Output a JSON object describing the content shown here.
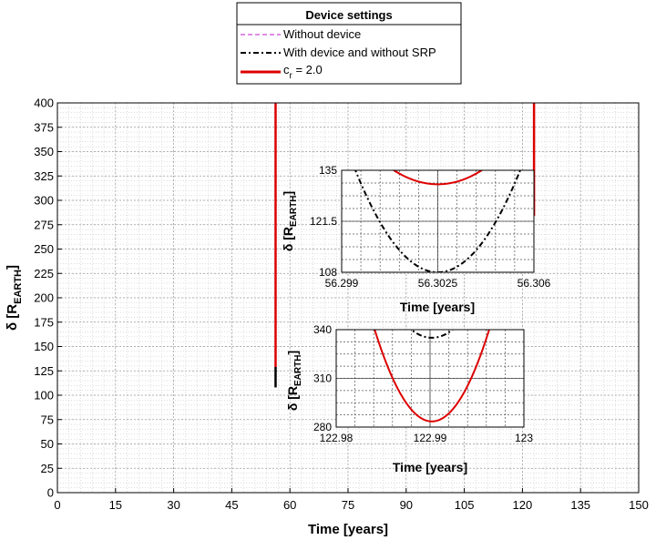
{
  "chart_data": [
    {
      "type": "line",
      "id": "main",
      "title": "",
      "xlabel": "Time [years]",
      "ylabel": "δ [R_EARTH]",
      "ylabel_main": "δ [R",
      "ylabel_sub": "EARTH",
      "ylabel_close": "]",
      "xlim": [
        0,
        150
      ],
      "ylim": [
        0,
        400
      ],
      "xticks": [
        0,
        15,
        30,
        45,
        60,
        75,
        90,
        105,
        120,
        135,
        150
      ],
      "yticks": [
        0,
        25,
        50,
        75,
        100,
        125,
        150,
        175,
        200,
        225,
        250,
        275,
        300,
        325,
        350,
        375,
        400
      ],
      "grid": true,
      "minor_grid": true,
      "legend": {
        "title": "Device settings",
        "placement": "top-center, outside",
        "entries": [
          {
            "name": "Without device",
            "color": "#e08ce8",
            "style": "dashed"
          },
          {
            "name": "With device and without SRP",
            "color": "#000000",
            "style": "dash-dot"
          },
          {
            "name": "c_r = 2.0",
            "label_main": "c",
            "label_sub": "r",
            "label_rest": " = 2.0",
            "color": "#dd0000",
            "style": "solid"
          }
        ]
      },
      "series": [
        {
          "name": "c_r = 2.0",
          "color": "#dd0000",
          "x": [
            56.3025,
            56.3025
          ],
          "y": [
            400,
            129
          ]
        },
        {
          "name": "With device and without SRP",
          "color": "#000000",
          "x": [
            56.3025,
            56.3025
          ],
          "y": [
            129,
            108
          ]
        },
        {
          "name": "c_r = 2.0",
          "color": "#dd0000",
          "x": [
            122.99,
            122.99
          ],
          "y": [
            400,
            284
          ]
        }
      ]
    },
    {
      "type": "line",
      "id": "inset-upper",
      "xlabel": "Time [years]",
      "ylabel": "δ [R_EARTH]",
      "ylabel_main": "δ [R",
      "ylabel_sub": "EARTH",
      "ylabel_close": "]",
      "xlim": [
        56.299,
        56.306
      ],
      "ylim": [
        108,
        135
      ],
      "xticks": [
        56.299,
        56.3025,
        56.306
      ],
      "xtick_labels": [
        "56.299",
        "56.3025",
        "56.306"
      ],
      "yticks": [
        108,
        121.5,
        135
      ],
      "ytick_labels": [
        "108",
        "121.5",
        "135"
      ],
      "grid": true,
      "series": [
        {
          "name": "With device and without SRP",
          "color": "#000000",
          "style": "dash-dot",
          "vertex_x": 56.3025,
          "vertex_y": 108,
          "edge_dx": 0.003,
          "edge_y": 135
        },
        {
          "name": "c_r = 2.0",
          "color": "#dd0000",
          "style": "solid",
          "vertex_x": 56.3025,
          "vertex_y": 131.3,
          "edge_dx": 0.0016,
          "edge_y": 135
        }
      ]
    },
    {
      "type": "line",
      "id": "inset-lower",
      "xlabel": "Time [years]",
      "ylabel": "δ [R_EARTH]",
      "ylabel_main": "δ [R",
      "ylabel_sub": "EARTH",
      "ylabel_close": "]",
      "xlim": [
        122.98,
        123
      ],
      "ylim": [
        280,
        340
      ],
      "xticks": [
        122.98,
        122.99,
        123
      ],
      "xtick_labels": [
        "122.98",
        "122.99",
        "123"
      ],
      "yticks": [
        280,
        310,
        340
      ],
      "ytick_labels": [
        "280",
        "310",
        "340"
      ],
      "grid": true,
      "series": [
        {
          "name": "With device and without SRP",
          "color": "#000000",
          "style": "dash-dot",
          "vertex_x": 122.9902,
          "vertex_y": 335,
          "edge_dx": 0.0022,
          "edge_y": 340
        },
        {
          "name": "c_r = 2.0",
          "color": "#dd0000",
          "style": "solid",
          "vertex_x": 122.9902,
          "vertex_y": 283.5,
          "edge_dx": 0.0061,
          "edge_y": 340
        }
      ]
    }
  ]
}
